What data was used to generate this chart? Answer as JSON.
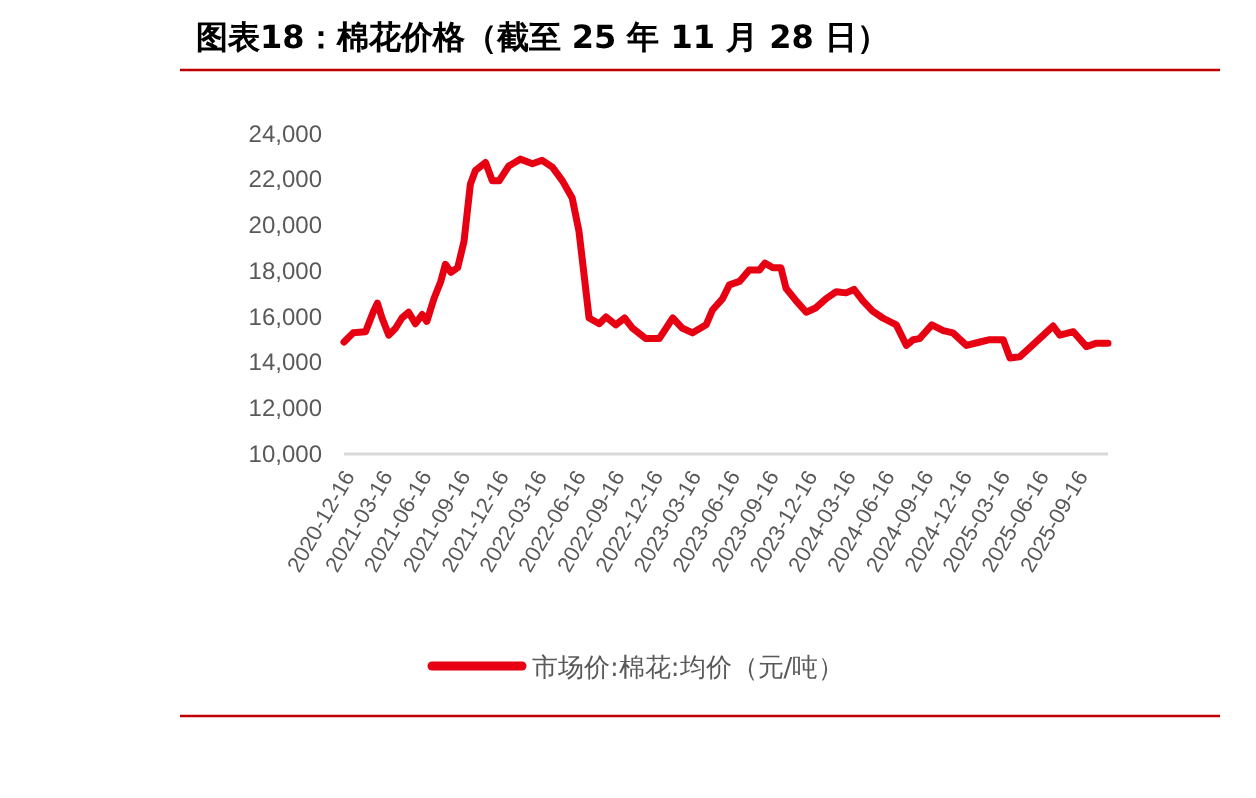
{
  "chart_data": {
    "type": "line",
    "title": "图表18：棉花价格（截至 25 年 11 月 28 日）",
    "x": [
      "2020-12-16",
      "2021-01-07",
      "2021-02-05",
      "2021-02-24",
      "2021-03-05",
      "2021-03-16",
      "2021-04-01",
      "2021-04-17",
      "2021-05-02",
      "2021-05-18",
      "2021-06-03",
      "2021-06-19",
      "2021-06-30",
      "2021-07-17",
      "2021-08-02",
      "2021-08-13",
      "2021-08-26",
      "2021-09-11",
      "2021-09-26",
      "2021-10-11",
      "2021-10-23",
      "2021-11-16",
      "2021-12-02",
      "2021-12-18",
      "2022-01-10",
      "2022-02-06",
      "2022-03-07",
      "2022-03-30",
      "2022-04-23",
      "2022-05-17",
      "2022-06-09",
      "2022-06-25",
      "2022-07-08",
      "2022-07-19",
      "2022-08-12",
      "2022-08-28",
      "2022-09-20",
      "2022-10-11",
      "2022-10-30",
      "2022-11-30",
      "2023-01-01",
      "2023-02-02",
      "2023-02-25",
      "2023-03-21",
      "2023-04-22",
      "2023-05-07",
      "2023-05-31",
      "2023-06-16",
      "2023-07-10",
      "2023-08-02",
      "2023-08-26",
      "2023-09-08",
      "2023-09-27",
      "2023-10-16",
      "2023-10-28",
      "2023-11-21",
      "2023-12-15",
      "2024-01-07",
      "2024-01-31",
      "2024-02-24",
      "2024-03-18",
      "2024-04-06",
      "2024-04-27",
      "2024-05-20",
      "2024-06-13",
      "2024-07-15",
      "2024-08-08",
      "2024-08-24",
      "2024-09-08",
      "2024-10-07",
      "2024-11-03",
      "2024-11-26",
      "2024-12-28",
      "2025-01-29",
      "2025-02-21",
      "2025-03-25",
      "2025-04-10",
      "2025-05-03",
      "2025-05-27",
      "2025-06-28",
      "2025-07-21",
      "2025-08-06",
      "2025-09-07",
      "2025-10-08",
      "2025-11-01",
      "2025-11-28"
    ],
    "series": [
      {
        "name": "市场价:棉花:均价（元/吨）",
        "color": "#e60012",
        "values": [
          14900,
          15300,
          15350,
          16250,
          16600,
          15950,
          15200,
          15500,
          15950,
          16200,
          15700,
          16100,
          15800,
          16800,
          17550,
          18300,
          17950,
          18150,
          19300,
          21800,
          22400,
          22750,
          21950,
          21950,
          22600,
          22900,
          22700,
          22850,
          22550,
          21950,
          21200,
          19750,
          17700,
          15950,
          15700,
          16000,
          15650,
          15950,
          15500,
          15050,
          15050,
          15950,
          15500,
          15300,
          15650,
          16300,
          16800,
          17400,
          17550,
          18050,
          18050,
          18350,
          18150,
          18150,
          17250,
          16700,
          16200,
          16400,
          16800,
          17100,
          17050,
          17200,
          16700,
          16250,
          15950,
          15650,
          14750,
          15000,
          15050,
          15650,
          15400,
          15300,
          14750,
          14900,
          15000,
          15000,
          14200,
          14250,
          14650,
          15200,
          15600,
          15200,
          15350,
          14700,
          14850,
          14850
        ]
      }
    ],
    "xlim": [
      "2020-12-16",
      "2025-11-28"
    ],
    "xticks": [
      "2020-12-16",
      "2021-03-16",
      "2021-06-16",
      "2021-09-16",
      "2021-12-16",
      "2022-03-16",
      "2022-06-16",
      "2022-09-16",
      "2022-12-16",
      "2023-03-16",
      "2023-06-16",
      "2023-09-16",
      "2023-12-16",
      "2024-03-16",
      "2024-06-16",
      "2024-09-16",
      "2024-12-16",
      "2025-03-16",
      "2025-06-16",
      "2025-09-16"
    ],
    "ylim": [
      10000,
      24000
    ],
    "yticks": [
      {
        "value": 10000,
        "label": "10,000"
      },
      {
        "value": 12000,
        "label": "12,000"
      },
      {
        "value": 14000,
        "label": "14,000"
      },
      {
        "value": 16000,
        "label": "16,000"
      },
      {
        "value": 18000,
        "label": "18,000"
      },
      {
        "value": 20000,
        "label": "20,000"
      },
      {
        "value": 22000,
        "label": "22,000"
      },
      {
        "value": 24000,
        "label": "24,000"
      }
    ],
    "grid": false,
    "legend": "bottom",
    "marker": "none",
    "line_style": "solid"
  }
}
